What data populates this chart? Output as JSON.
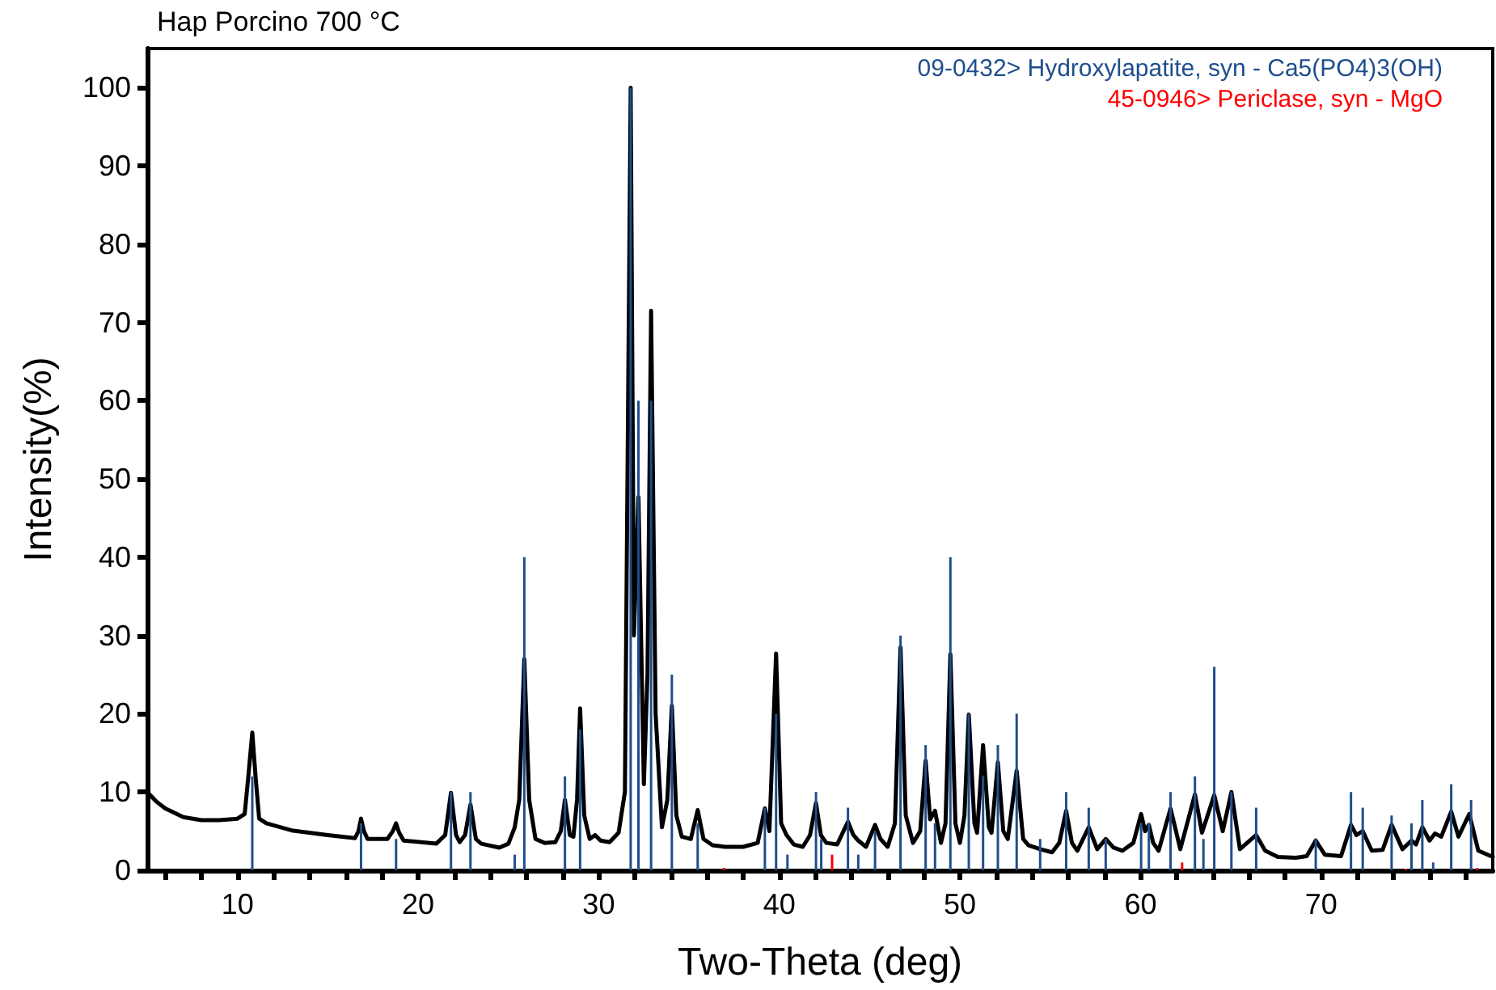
{
  "chart_data": {
    "type": "line",
    "title": "Hap Porcino 700 °C",
    "xlabel": "Two-Theta (deg)",
    "ylabel": "Intensity(%)",
    "xlim": [
      5,
      79.5
    ],
    "ylim": [
      0,
      105
    ],
    "xticks": [
      {
        "value": 6,
        "label": null
      },
      {
        "value": 8,
        "label": null
      },
      10,
      {
        "value": 12,
        "label": null
      },
      {
        "value": 14,
        "label": null
      },
      {
        "value": 16,
        "label": null
      },
      {
        "value": 18,
        "label": null
      },
      20,
      {
        "value": 22,
        "label": null
      },
      {
        "value": 24,
        "label": null
      },
      {
        "value": 26,
        "label": null
      },
      {
        "value": 28,
        "label": null
      },
      30,
      {
        "value": 32,
        "label": null
      },
      {
        "value": 34,
        "label": null
      },
      {
        "value": 36,
        "label": null
      },
      {
        "value": 38,
        "label": null
      },
      40,
      {
        "value": 42,
        "label": null
      },
      {
        "value": 44,
        "label": null
      },
      {
        "value": 46,
        "label": null
      },
      {
        "value": 48,
        "label": null
      },
      50,
      {
        "value": 52,
        "label": null
      },
      {
        "value": 54,
        "label": null
      },
      {
        "value": 56,
        "label": null
      },
      {
        "value": 58,
        "label": null
      },
      60,
      {
        "value": 62,
        "label": null
      },
      {
        "value": 64,
        "label": null
      },
      {
        "value": 66,
        "label": null
      },
      {
        "value": 68,
        "label": null
      },
      70,
      {
        "value": 72,
        "label": null
      },
      {
        "value": 74,
        "label": null
      },
      {
        "value": 76,
        "label": null
      },
      {
        "value": 78,
        "label": null
      }
    ],
    "yticks": [
      0,
      10,
      20,
      30,
      40,
      50,
      60,
      70,
      80,
      90,
      100
    ],
    "legend": "top right",
    "marker": "none",
    "line_style": "solid",
    "series": [
      {
        "color": "#000000",
        "x": [
          5,
          5.5,
          6,
          7,
          8,
          9,
          10,
          10.4,
          10.6,
          10.82,
          11.0,
          11.2,
          11.6,
          13,
          15,
          16.5,
          16.7,
          16.84,
          17.0,
          17.2,
          18.3,
          18.6,
          18.78,
          18.95,
          19.2,
          21,
          21.5,
          21.82,
          22.1,
          22.3,
          22.6,
          22.9,
          23.2,
          23.5,
          24.5,
          25.0,
          25.35,
          25.6,
          25.88,
          26.15,
          26.5,
          27,
          27.6,
          27.9,
          28.13,
          28.4,
          28.6,
          28.8,
          28.97,
          29.2,
          29.5,
          29.8,
          30.1,
          30.6,
          31.1,
          31.45,
          31.77,
          31.95,
          32.2,
          32.5,
          32.7,
          32.9,
          33.15,
          33.5,
          33.8,
          34.05,
          34.3,
          34.6,
          35.1,
          35.48,
          35.8,
          36.3,
          37,
          38,
          38.8,
          39.2,
          39.45,
          39.82,
          40.1,
          40.4,
          40.8,
          41.3,
          41.7,
          42.03,
          42.3,
          42.6,
          43.2,
          43.8,
          44.1,
          44.37,
          44.8,
          45.3,
          45.6,
          46.0,
          46.4,
          46.71,
          47.0,
          47.4,
          47.8,
          48.1,
          48.35,
          48.62,
          48.95,
          49.2,
          49.47,
          49.75,
          50.0,
          50.25,
          50.49,
          50.8,
          50.95,
          51.28,
          51.6,
          51.75,
          52.1,
          52.4,
          52.65,
          53.14,
          53.5,
          53.8,
          54.44,
          55.1,
          55.5,
          55.88,
          56.2,
          56.5,
          57.13,
          57.6,
          58.07,
          58.5,
          59.0,
          59.6,
          60.03,
          60.25,
          60.46,
          60.7,
          61.0,
          61.66,
          62.2,
          63.01,
          63.4,
          64.08,
          64.55,
          65.03,
          65.5,
          66.4,
          66.9,
          67.6,
          68.6,
          69.2,
          69.7,
          70.2,
          71.1,
          71.65,
          71.95,
          72.3,
          72.8,
          73.4,
          73.9,
          74.5,
          75.0,
          75.25,
          75.6,
          76.0,
          76.3,
          76.65,
          77.2,
          77.6,
          78.2,
          78.7,
          79.5
        ],
        "values": [
          10,
          8.8,
          7.9,
          6.8,
          6.4,
          6.4,
          6.6,
          7.2,
          12,
          17.6,
          12,
          6.6,
          6,
          5.1,
          4.5,
          4.1,
          5,
          6.6,
          5,
          4,
          4,
          5,
          6,
          4.8,
          3.8,
          3.4,
          4.5,
          9.9,
          4.5,
          3.6,
          4.5,
          8.4,
          4,
          3.4,
          2.9,
          3.4,
          5.5,
          9,
          27,
          9,
          4,
          3.5,
          3.6,
          5,
          9,
          4.5,
          4.3,
          9,
          20.7,
          7,
          4,
          4.5,
          3.8,
          3.6,
          4.8,
          10,
          100,
          30,
          47.7,
          11,
          25,
          71.5,
          20,
          5.5,
          9,
          21,
          7,
          4.3,
          4,
          7.7,
          4,
          3.2,
          3,
          3,
          3.5,
          7.9,
          5,
          27.7,
          6,
          4.5,
          3.3,
          3,
          4.5,
          8.6,
          4.5,
          3.5,
          3.3,
          6.2,
          4.5,
          3.8,
          3,
          5.8,
          4,
          3,
          6,
          28.5,
          7,
          3.5,
          5,
          14,
          6.5,
          7.6,
          3.5,
          6,
          27.6,
          6,
          3.5,
          7,
          19.9,
          6,
          4.8,
          16,
          5.5,
          4.8,
          13.8,
          5,
          4,
          12.7,
          4,
          3.2,
          2.7,
          2.3,
          3.5,
          7.6,
          3.5,
          2.5,
          5.5,
          2.7,
          4,
          2.9,
          2.5,
          3.5,
          7.2,
          5,
          5.8,
          3.5,
          2.5,
          7.9,
          2.7,
          9.7,
          4.8,
          9.6,
          5,
          10,
          2.7,
          4.5,
          2.5,
          1.7,
          1.6,
          1.8,
          3.8,
          2,
          1.8,
          5.8,
          4.5,
          5,
          2.5,
          2.6,
          5.8,
          2.7,
          3.8,
          3.3,
          5.5,
          3.8,
          4.7,
          4.3,
          7.5,
          4.3,
          7.2,
          2.5,
          1.7
        ]
      },
      {
        "name": "09-0432> Hydroxylapatite, syn - Ca5(PO4)3(OH)",
        "type": "bar",
        "color": "#1f4e8c",
        "x": [
          10.82,
          16.84,
          18.78,
          21.82,
          22.9,
          25.35,
          25.88,
          28.13,
          28.97,
          31.77,
          32.2,
          32.9,
          34.05,
          35.48,
          39.2,
          39.82,
          40.45,
          42.03,
          42.32,
          43.8,
          44.37,
          45.3,
          46.71,
          48.1,
          48.62,
          49.47,
          50.49,
          51.28,
          52.1,
          53.14,
          54.44,
          55.88,
          57.13,
          58.07,
          60.03,
          60.46,
          61.66,
          63.01,
          63.48,
          64.08,
          65.03,
          66.4,
          69.7,
          71.65,
          72.3,
          73.9,
          75.0,
          75.6,
          76.2,
          77.2,
          78.3
        ],
        "values": [
          12,
          6,
          4,
          10,
          10,
          2,
          40,
          12,
          18,
          100,
          60,
          60,
          25,
          6,
          8,
          20,
          2,
          10,
          4,
          8,
          2,
          5,
          30,
          16,
          6,
          40,
          20,
          12,
          16,
          20,
          4,
          10,
          8,
          4,
          6,
          6,
          10,
          12,
          4,
          26,
          10,
          8,
          4,
          10,
          8,
          7,
          6,
          9,
          1,
          11,
          9
        ]
      },
      {
        "name": "45-0946> Periclase, syn - MgO",
        "type": "bar",
        "color": "#ff0000",
        "x": [
          36.94,
          42.92,
          62.3,
          74.69,
          78.63
        ],
        "values": [
          0.3,
          2,
          1,
          0.2,
          0.3
        ]
      }
    ]
  }
}
